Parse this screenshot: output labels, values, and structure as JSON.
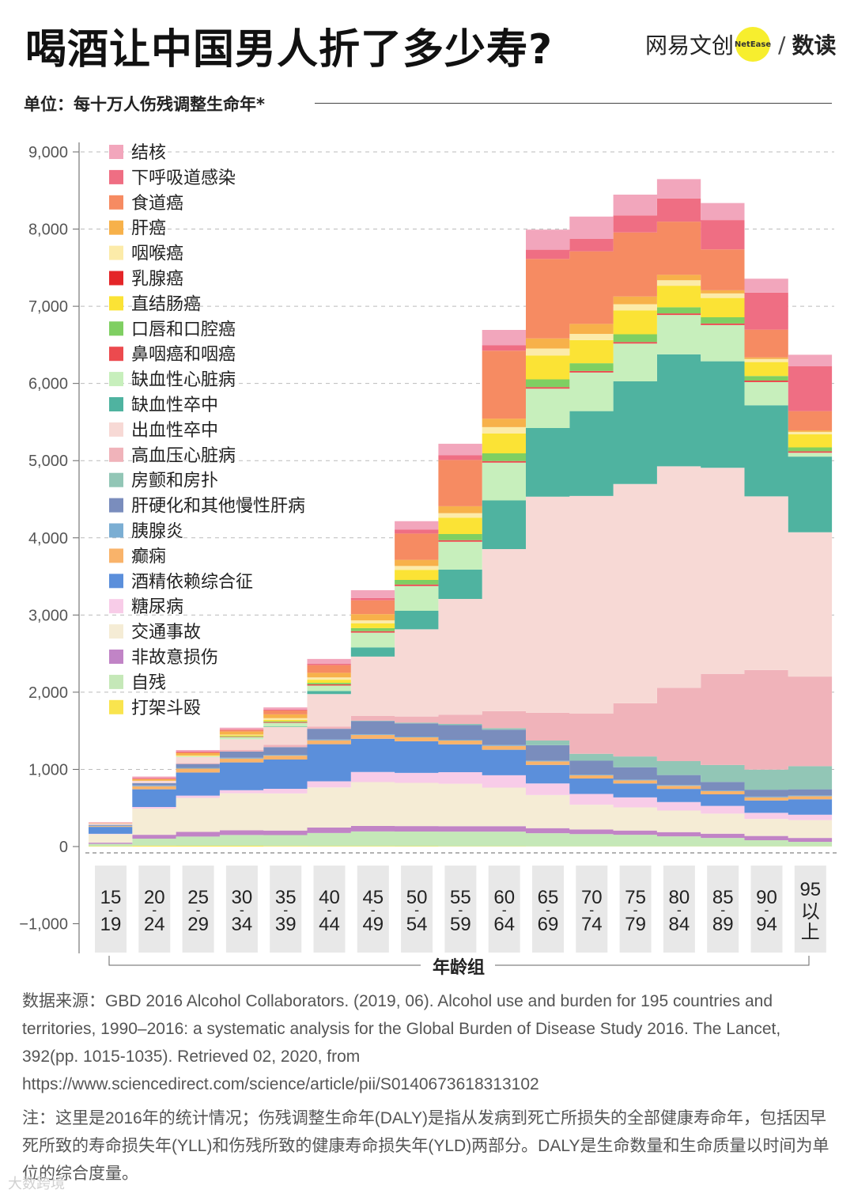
{
  "header": {
    "title": "喝酒让中国男人折了多少寿?",
    "brand_name": "网易文创",
    "brand_logo_text": "NetEase",
    "brand_slash": "/",
    "brand_sub": "数读",
    "unit": "单位：每十万人伤残调整生命年*"
  },
  "chart_data": {
    "type": "area",
    "stacked": true,
    "step": true,
    "title": "喝酒让中国男人折了多少寿?",
    "ylabel": "单位：每十万人伤残调整生命年*",
    "xlabel": "年龄组",
    "ylim": [
      -1000,
      9000
    ],
    "yticks": [
      {
        "v": 9000,
        "label": "9,000"
      },
      {
        "v": 8000,
        "label": "8,000"
      },
      {
        "v": 7000,
        "label": "7,000"
      },
      {
        "v": 6000,
        "label": "6,000"
      },
      {
        "v": 5000,
        "label": "5,000"
      },
      {
        "v": 4000,
        "label": "4,000"
      },
      {
        "v": 3000,
        "label": "3,000"
      },
      {
        "v": 2000,
        "label": "2,000"
      },
      {
        "v": 1000,
        "label": "1,000"
      },
      {
        "v": 0,
        "label": "0"
      },
      {
        "v": -1000,
        "label": "−1,000"
      }
    ],
    "categories": [
      {
        "top": "15",
        "dash": "-",
        "bottom": "19"
      },
      {
        "top": "20",
        "dash": "-",
        "bottom": "24"
      },
      {
        "top": "25",
        "dash": "-",
        "bottom": "29"
      },
      {
        "top": "30",
        "dash": "-",
        "bottom": "34"
      },
      {
        "top": "35",
        "dash": "-",
        "bottom": "39"
      },
      {
        "top": "40",
        "dash": "-",
        "bottom": "44"
      },
      {
        "top": "45",
        "dash": "-",
        "bottom": "49"
      },
      {
        "top": "50",
        "dash": "-",
        "bottom": "54"
      },
      {
        "top": "55",
        "dash": "-",
        "bottom": "59"
      },
      {
        "top": "60",
        "dash": "-",
        "bottom": "64"
      },
      {
        "top": "65",
        "dash": "-",
        "bottom": "69"
      },
      {
        "top": "70",
        "dash": "-",
        "bottom": "74"
      },
      {
        "top": "75",
        "dash": "-",
        "bottom": "79"
      },
      {
        "top": "80",
        "dash": "-",
        "bottom": "84"
      },
      {
        "top": "85",
        "dash": "-",
        "bottom": "89"
      },
      {
        "top": "90",
        "dash": "-",
        "bottom": "94"
      },
      {
        "top": "95",
        "dash": "以",
        "bottom": "上"
      }
    ],
    "series": [
      {
        "name": "打架斗殴",
        "color": "#f9e44e",
        "values": [
          5,
          12,
          10,
          10,
          8,
          6,
          6,
          5,
          4,
          4,
          3,
          2,
          2,
          2,
          2,
          2,
          2
        ]
      },
      {
        "name": "自残",
        "color": "#c5e8b8",
        "values": [
          30,
          90,
          120,
          140,
          140,
          170,
          190,
          190,
          190,
          190,
          170,
          160,
          150,
          130,
          110,
          80,
          60
        ]
      },
      {
        "name": "非故意损伤",
        "color": "#c184c6",
        "values": [
          15,
          50,
          60,
          60,
          60,
          70,
          70,
          70,
          70,
          70,
          65,
          60,
          55,
          55,
          55,
          55,
          50
        ]
      },
      {
        "name": "交通事故",
        "color": "#f5ecd5",
        "values": [
          110,
          340,
          440,
          480,
          480,
          520,
          570,
          560,
          550,
          500,
          430,
          320,
          300,
          280,
          260,
          220,
          230
        ]
      },
      {
        "name": "糖尿病",
        "color": "#f8cce8",
        "values": [
          5,
          20,
          30,
          40,
          60,
          80,
          130,
          130,
          150,
          160,
          150,
          140,
          130,
          110,
          100,
          80,
          70
        ]
      },
      {
        "name": "酒精依赖综合征",
        "color": "#5b8fdb",
        "values": [
          90,
          230,
          300,
          360,
          380,
          480,
          430,
          410,
          360,
          330,
          240,
          200,
          180,
          170,
          150,
          160,
          200
        ]
      },
      {
        "name": "癫痫",
        "color": "#f9b36a",
        "values": [
          10,
          40,
          50,
          50,
          50,
          50,
          50,
          50,
          50,
          50,
          45,
          40,
          40,
          40,
          40,
          40,
          40
        ]
      },
      {
        "name": "胰腺炎",
        "color": "#7baed3",
        "values": [
          5,
          10,
          10,
          10,
          10,
          10,
          10,
          10,
          10,
          10,
          10,
          10,
          10,
          10,
          10,
          10,
          10
        ]
      },
      {
        "name": "肝硬化和其他慢性肝病",
        "color": "#7a8dbd",
        "values": [
          10,
          30,
          50,
          80,
          100,
          140,
          170,
          170,
          190,
          200,
          200,
          180,
          160,
          130,
          110,
          90,
          80
        ]
      },
      {
        "name": "房颤和房扑",
        "color": "#92c6b6",
        "values": [
          0,
          0,
          0,
          0,
          0,
          0,
          5,
          10,
          15,
          20,
          60,
          90,
          140,
          180,
          220,
          260,
          300
        ]
      },
      {
        "name": "高血压心脏病",
        "color": "#f0b3ba",
        "values": [
          0,
          0,
          10,
          20,
          30,
          30,
          60,
          80,
          120,
          220,
          360,
          520,
          690,
          950,
          1180,
          1290,
          1160
        ]
      },
      {
        "name": "出血性卒中",
        "color": "#f7d9d5",
        "values": [
          20,
          30,
          80,
          140,
          230,
          420,
          770,
          1130,
          1500,
          2100,
          2800,
          2820,
          2840,
          2870,
          2670,
          2250,
          1870
        ]
      },
      {
        "name": "缺血性卒中",
        "color": "#4fb3a0",
        "values": [
          0,
          0,
          0,
          0,
          5,
          40,
          120,
          240,
          380,
          630,
          890,
          1100,
          1330,
          1450,
          1380,
          1180,
          980
        ]
      },
      {
        "name": "缺血性心脏病",
        "color": "#c7efbc",
        "values": [
          0,
          0,
          10,
          30,
          50,
          70,
          190,
          320,
          360,
          490,
          510,
          500,
          490,
          510,
          470,
          300,
          50
        ]
      },
      {
        "name": "鼻咽癌和咽癌",
        "color": "#ec4a4e",
        "values": [
          0,
          0,
          0,
          5,
          10,
          15,
          20,
          20,
          20,
          20,
          20,
          20,
          20,
          20,
          20,
          20,
          20
        ]
      },
      {
        "name": "口唇和口腔癌",
        "color": "#7fcf62",
        "values": [
          0,
          0,
          0,
          5,
          10,
          20,
          40,
          60,
          80,
          100,
          100,
          100,
          100,
          80,
          80,
          60,
          50
        ]
      },
      {
        "name": "直结肠癌",
        "color": "#fbe335",
        "values": [
          0,
          0,
          5,
          10,
          20,
          40,
          60,
          130,
          210,
          260,
          310,
          300,
          310,
          280,
          250,
          180,
          170
        ]
      },
      {
        "name": "乳腺癌",
        "color": "#e42528",
        "values": [
          0,
          0,
          0,
          0,
          0,
          0,
          0,
          0,
          0,
          0,
          0,
          0,
          0,
          0,
          0,
          0,
          0
        ]
      },
      {
        "name": "咽喉癌",
        "color": "#fceba9",
        "values": [
          0,
          0,
          5,
          10,
          20,
          30,
          40,
          50,
          60,
          80,
          90,
          80,
          80,
          70,
          60,
          40,
          30
        ]
      },
      {
        "name": "肝癌",
        "color": "#f7b14a",
        "values": [
          5,
          20,
          30,
          40,
          50,
          60,
          80,
          80,
          90,
          110,
          130,
          130,
          100,
          70,
          40,
          20,
          20
        ]
      },
      {
        "name": "食道癌",
        "color": "#f68b62",
        "values": [
          0,
          5,
          10,
          20,
          50,
          100,
          180,
          340,
          600,
          880,
          1030,
          940,
          830,
          690,
          530,
          360,
          250
        ]
      },
      {
        "name": "下呼吸道感染",
        "color": "#ef6e83",
        "values": [
          5,
          10,
          10,
          10,
          10,
          20,
          30,
          50,
          60,
          70,
          120,
          160,
          220,
          300,
          380,
          480,
          580
        ]
      },
      {
        "name": "结核",
        "color": "#f2a6bc",
        "values": [
          5,
          20,
          20,
          20,
          30,
          60,
          100,
          110,
          150,
          200,
          260,
          290,
          270,
          250,
          220,
          180,
          150
        ]
      }
    ]
  },
  "footer": {
    "source": "数据来源：GBD 2016 Alcohol Collaborators. (2019, 06). Alcohol use and burden for 195 countries and territories, 1990–2016: a systematic analysis for the Global Burden of Disease Study 2016. The Lancet, 392(pp. 1015-1035).  Retrieved 02, 2020, from https://www.sciencedirect.com/science/article/pii/S0140673618313102",
    "note": "注：这里是2016年的统计情况；伤残调整生命年(DALY)是指从发病到死亡所损失的全部健康寿命年，包括因早死所致的寿命损失年(YLL)和伤残所致的健康寿命损失年(YLD)两部分。DALY是生命数量和生命质量以时间为单位的综合度量。",
    "watermark": "大数跨境"
  }
}
